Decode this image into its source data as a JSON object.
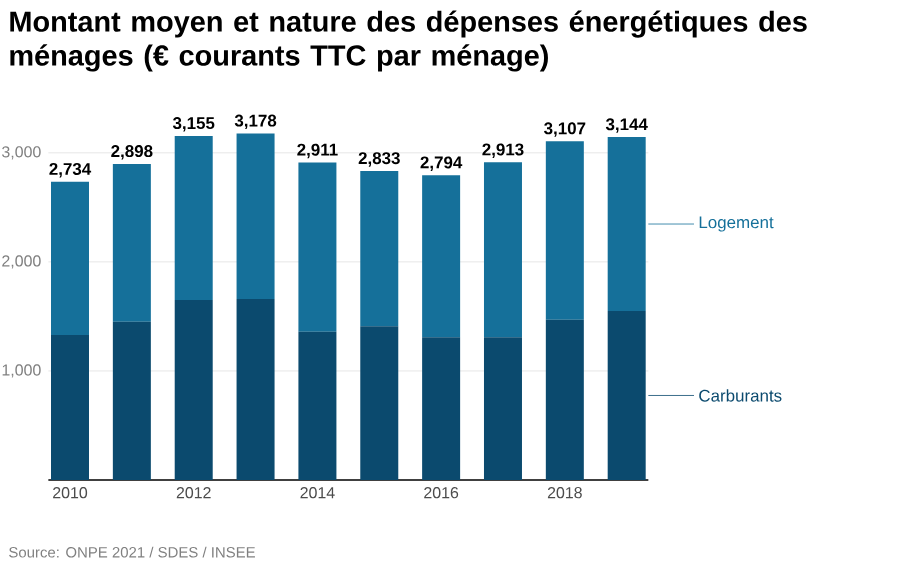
{
  "chart_data": {
    "type": "bar",
    "stacked": true,
    "title": "Montant moyen et nature des dépenses énergétiques des ménages (€ courants TTC par ménage)",
    "categories": [
      "2010",
      null,
      "2012",
      null,
      "2014",
      null,
      "2016",
      null,
      "2018",
      null
    ],
    "series": [
      {
        "name": "Carburants",
        "color": "#0b4a6e",
        "values": [
          1330,
          1450,
          1650,
          1660,
          1360,
          1410,
          1310,
          1310,
          1470,
          1550
        ]
      },
      {
        "name": "Logement",
        "color": "#15709a",
        "values": [
          1404,
          1448,
          1505,
          1518,
          1551,
          1423,
          1484,
          1603,
          1637,
          1594
        ]
      }
    ],
    "totals": [
      "2,734",
      "2,898",
      "3,155",
      "3,178",
      "2,911",
      "2,833",
      "2,794",
      "2,913",
      "3,107",
      "3,144"
    ],
    "legend": "right",
    "ylim": [
      0,
      3178
    ],
    "yticks": [
      {
        "value": 1000,
        "label": "1,000"
      },
      {
        "value": 2000,
        "label": "2,000"
      },
      {
        "value": 3000,
        "label": "3,000"
      }
    ],
    "grid": "y",
    "annotations": [
      "Source: ONPE 2021 / SDES / INSEE"
    ]
  }
}
